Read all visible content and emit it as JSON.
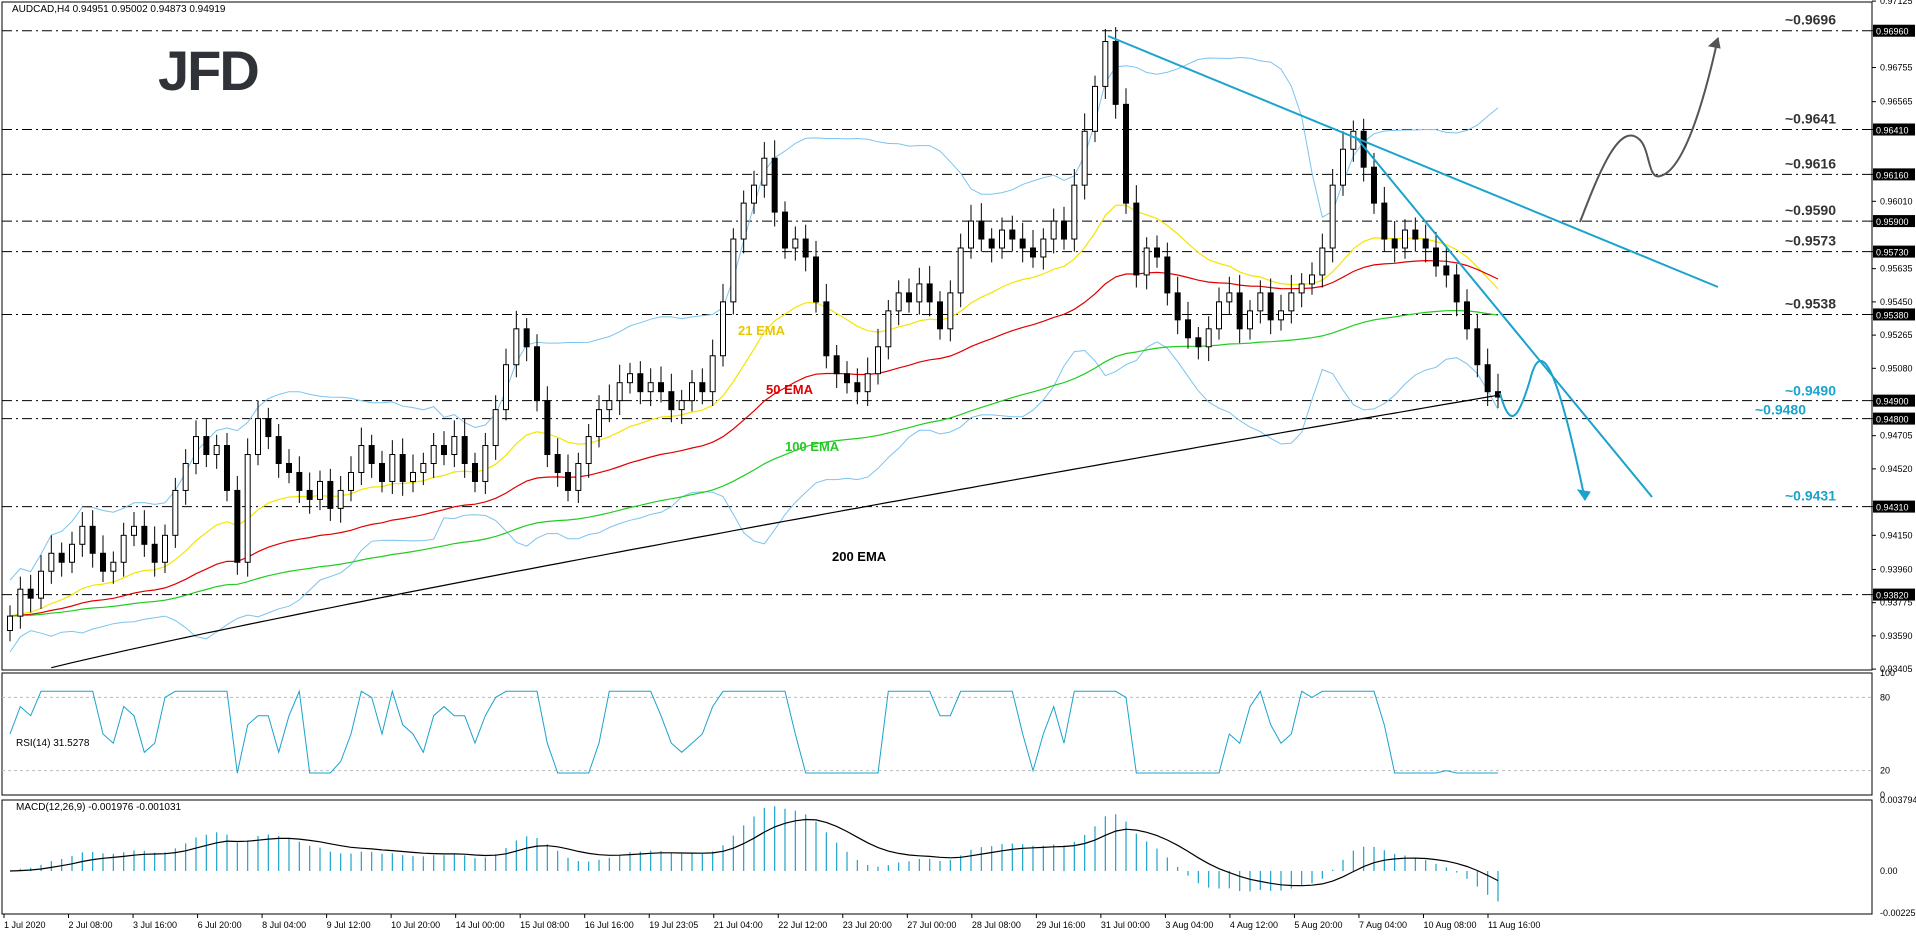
{
  "chart_data": {
    "type": "candlestick",
    "symbol_header": "AUDCAD,H4  0.94951 0.95002 0.94873 0.94919",
    "logo": "JFD",
    "price_axis": {
      "ylim": [
        0.934,
        0.9712
      ],
      "tick_labels": [
        "0.97125",
        "0.96960",
        "0.96755",
        "0.96565",
        "0.96410",
        "0.96160",
        "0.96010",
        "0.95900",
        "0.95730",
        "0.95635",
        "0.95450",
        "0.95380",
        "0.95265",
        "0.95080",
        "0.94900",
        "0.94800",
        "0.94705",
        "0.94520",
        "0.94310",
        "0.94150",
        "0.93960",
        "0.93820",
        "0.93775",
        "0.93590",
        "0.93405"
      ]
    },
    "levels": [
      {
        "label": "~0.9696",
        "value": 0.9696,
        "box": "0.96960",
        "color": "#333333"
      },
      {
        "label": "~0.9641",
        "value": 0.9641,
        "box": "0.96410",
        "color": "#333333"
      },
      {
        "label": "~0.9616",
        "value": 0.9616,
        "box": "0.96160",
        "color": "#333333"
      },
      {
        "label": "~0.9590",
        "value": 0.959,
        "box": "0.95900",
        "color": "#333333"
      },
      {
        "label": "~0.9573",
        "value": 0.9573,
        "box": "0.95730",
        "color": "#333333"
      },
      {
        "label": "~0.9538",
        "value": 0.9538,
        "box": "0.95380",
        "color": "#333333"
      },
      {
        "label": "~0.9490",
        "value": 0.949,
        "box": "0.94900",
        "color": "#1aa3cc"
      },
      {
        "label": "~0.9480",
        "value": 0.948,
        "box": "0.94800",
        "color": "#1aa3cc"
      },
      {
        "label": "~0.9431",
        "value": 0.9431,
        "box": "0.94310",
        "color": "#1aa3cc"
      },
      {
        "label": "",
        "value": 0.9382,
        "box": "0.93820",
        "color": "#333333"
      }
    ],
    "ema_labels": [
      {
        "text": "21 EMA",
        "color": "#e8c800"
      },
      {
        "text": "50 EMA",
        "color": "#e00000"
      },
      {
        "text": "100 EMA",
        "color": "#22cc22"
      },
      {
        "text": "200 EMA",
        "color": "#000000"
      }
    ],
    "close_series": [
      0.937,
      0.9385,
      0.938,
      0.9395,
      0.9405,
      0.94,
      0.941,
      0.942,
      0.9405,
      0.9395,
      0.94,
      0.9415,
      0.942,
      0.941,
      0.94,
      0.9415,
      0.944,
      0.9455,
      0.947,
      0.946,
      0.9465,
      0.944,
      0.94,
      0.946,
      0.948,
      0.947,
      0.9455,
      0.945,
      0.944,
      0.9435,
      0.9445,
      0.943,
      0.944,
      0.945,
      0.9465,
      0.9455,
      0.9445,
      0.946,
      0.9445,
      0.945,
      0.9455,
      0.9465,
      0.946,
      0.947,
      0.9455,
      0.9445,
      0.9465,
      0.9485,
      0.951,
      0.953,
      0.952,
      0.949,
      0.946,
      0.945,
      0.944,
      0.9455,
      0.947,
      0.9485,
      0.949,
      0.95,
      0.9505,
      0.9495,
      0.95,
      0.9495,
      0.9485,
      0.949,
      0.95,
      0.9495,
      0.9515,
      0.9545,
      0.958,
      0.96,
      0.961,
      0.9625,
      0.9595,
      0.9575,
      0.958,
      0.957,
      0.9545,
      0.9515,
      0.9505,
      0.95,
      0.9495,
      0.9505,
      0.952,
      0.954,
      0.955,
      0.9545,
      0.9555,
      0.9545,
      0.953,
      0.955,
      0.9575,
      0.959,
      0.958,
      0.9575,
      0.9585,
      0.958,
      0.9575,
      0.957,
      0.958,
      0.959,
      0.958,
      0.961,
      0.964,
      0.9665,
      0.969,
      0.9655,
      0.96,
      0.956,
      0.9575,
      0.957,
      0.955,
      0.9535,
      0.9525,
      0.952,
      0.953,
      0.9545,
      0.955,
      0.953,
      0.954,
      0.955,
      0.9535,
      0.954,
      0.955,
      0.9555,
      0.956,
      0.9575,
      0.961,
      0.963,
      0.964,
      0.962,
      0.96,
      0.958,
      0.9575,
      0.9585,
      0.958,
      0.9575,
      0.9565,
      0.956,
      0.9545,
      0.953,
      0.951,
      0.9495,
      0.9492
    ],
    "rsi": {
      "label": "RSI(14) 31.5278",
      "ylim": [
        0,
        100
      ],
      "tick_labels": [
        "100",
        "80",
        "20",
        "0"
      ]
    },
    "macd": {
      "label": "MACD(12,26,9) -0.001976 -0.001031",
      "tick_labels": [
        "0.003794",
        "0.00",
        "-0.00225"
      ]
    },
    "x_axis_labels": [
      "1 Jul 2020",
      "2 Jul 08:00",
      "3 Jul 16:00",
      "6 Jul 20:00",
      "8 Jul 04:00",
      "9 Jul 12:00",
      "10 Jul 20:00",
      "14 Jul 00:00",
      "15 Jul 08:00",
      "16 Jul 16:00",
      "19 Jul 23:05",
      "21 Jul 04:00",
      "22 Jul 12:00",
      "23 Jul 20:00",
      "27 Jul 00:00",
      "28 Jul 08:00",
      "29 Jul 16:00",
      "31 Jul 00:00",
      "3 Aug 04:00",
      "4 Aug 12:00",
      "5 Aug 20:00",
      "7 Aug 04:00",
      "10 Aug 08:00",
      "11 Aug 16:00"
    ],
    "colors": {
      "trendline": "#1aa3cc",
      "bull": "#ffffff",
      "bear": "#000000",
      "bands": "#7cc4ee",
      "grid": "#000000"
    }
  }
}
